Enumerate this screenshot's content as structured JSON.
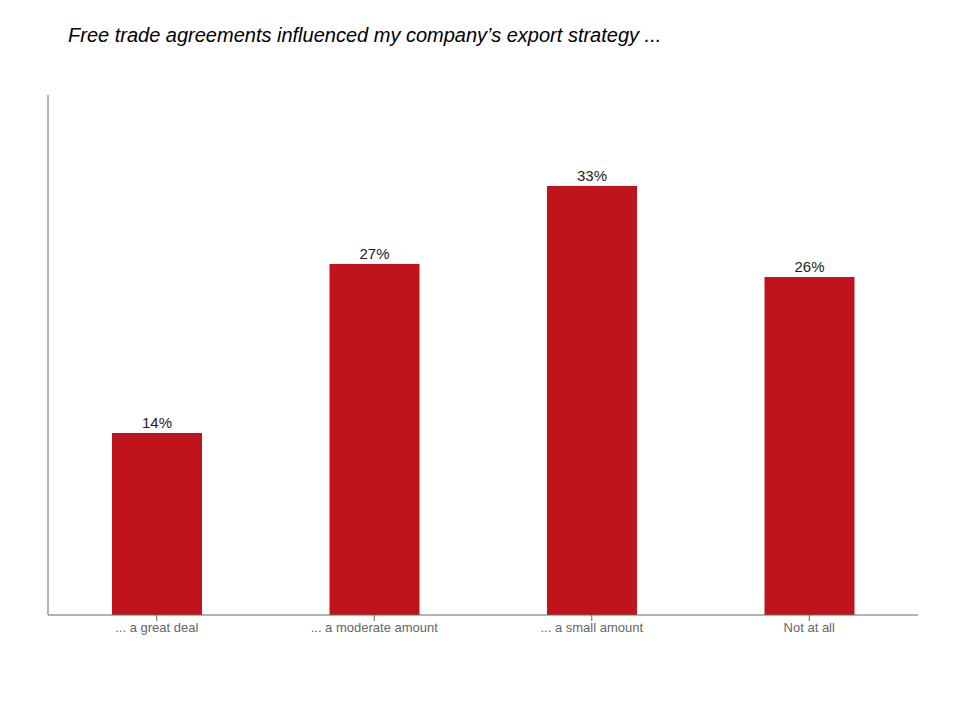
{
  "chart_data": {
    "type": "bar",
    "title": "Free trade agreements influenced my company’s export strategy ...",
    "categories": [
      "... a great deal",
      "... a moderate amount",
      "... a small amount",
      "Not at all"
    ],
    "values": [
      14,
      27,
      33,
      26
    ],
    "value_labels": [
      "14%",
      "27%",
      "33%",
      "26%"
    ],
    "color": "#C0141C",
    "ylim": [
      0,
      40
    ],
    "data_labels": true,
    "tick_labels": "x",
    "grid": false
  }
}
